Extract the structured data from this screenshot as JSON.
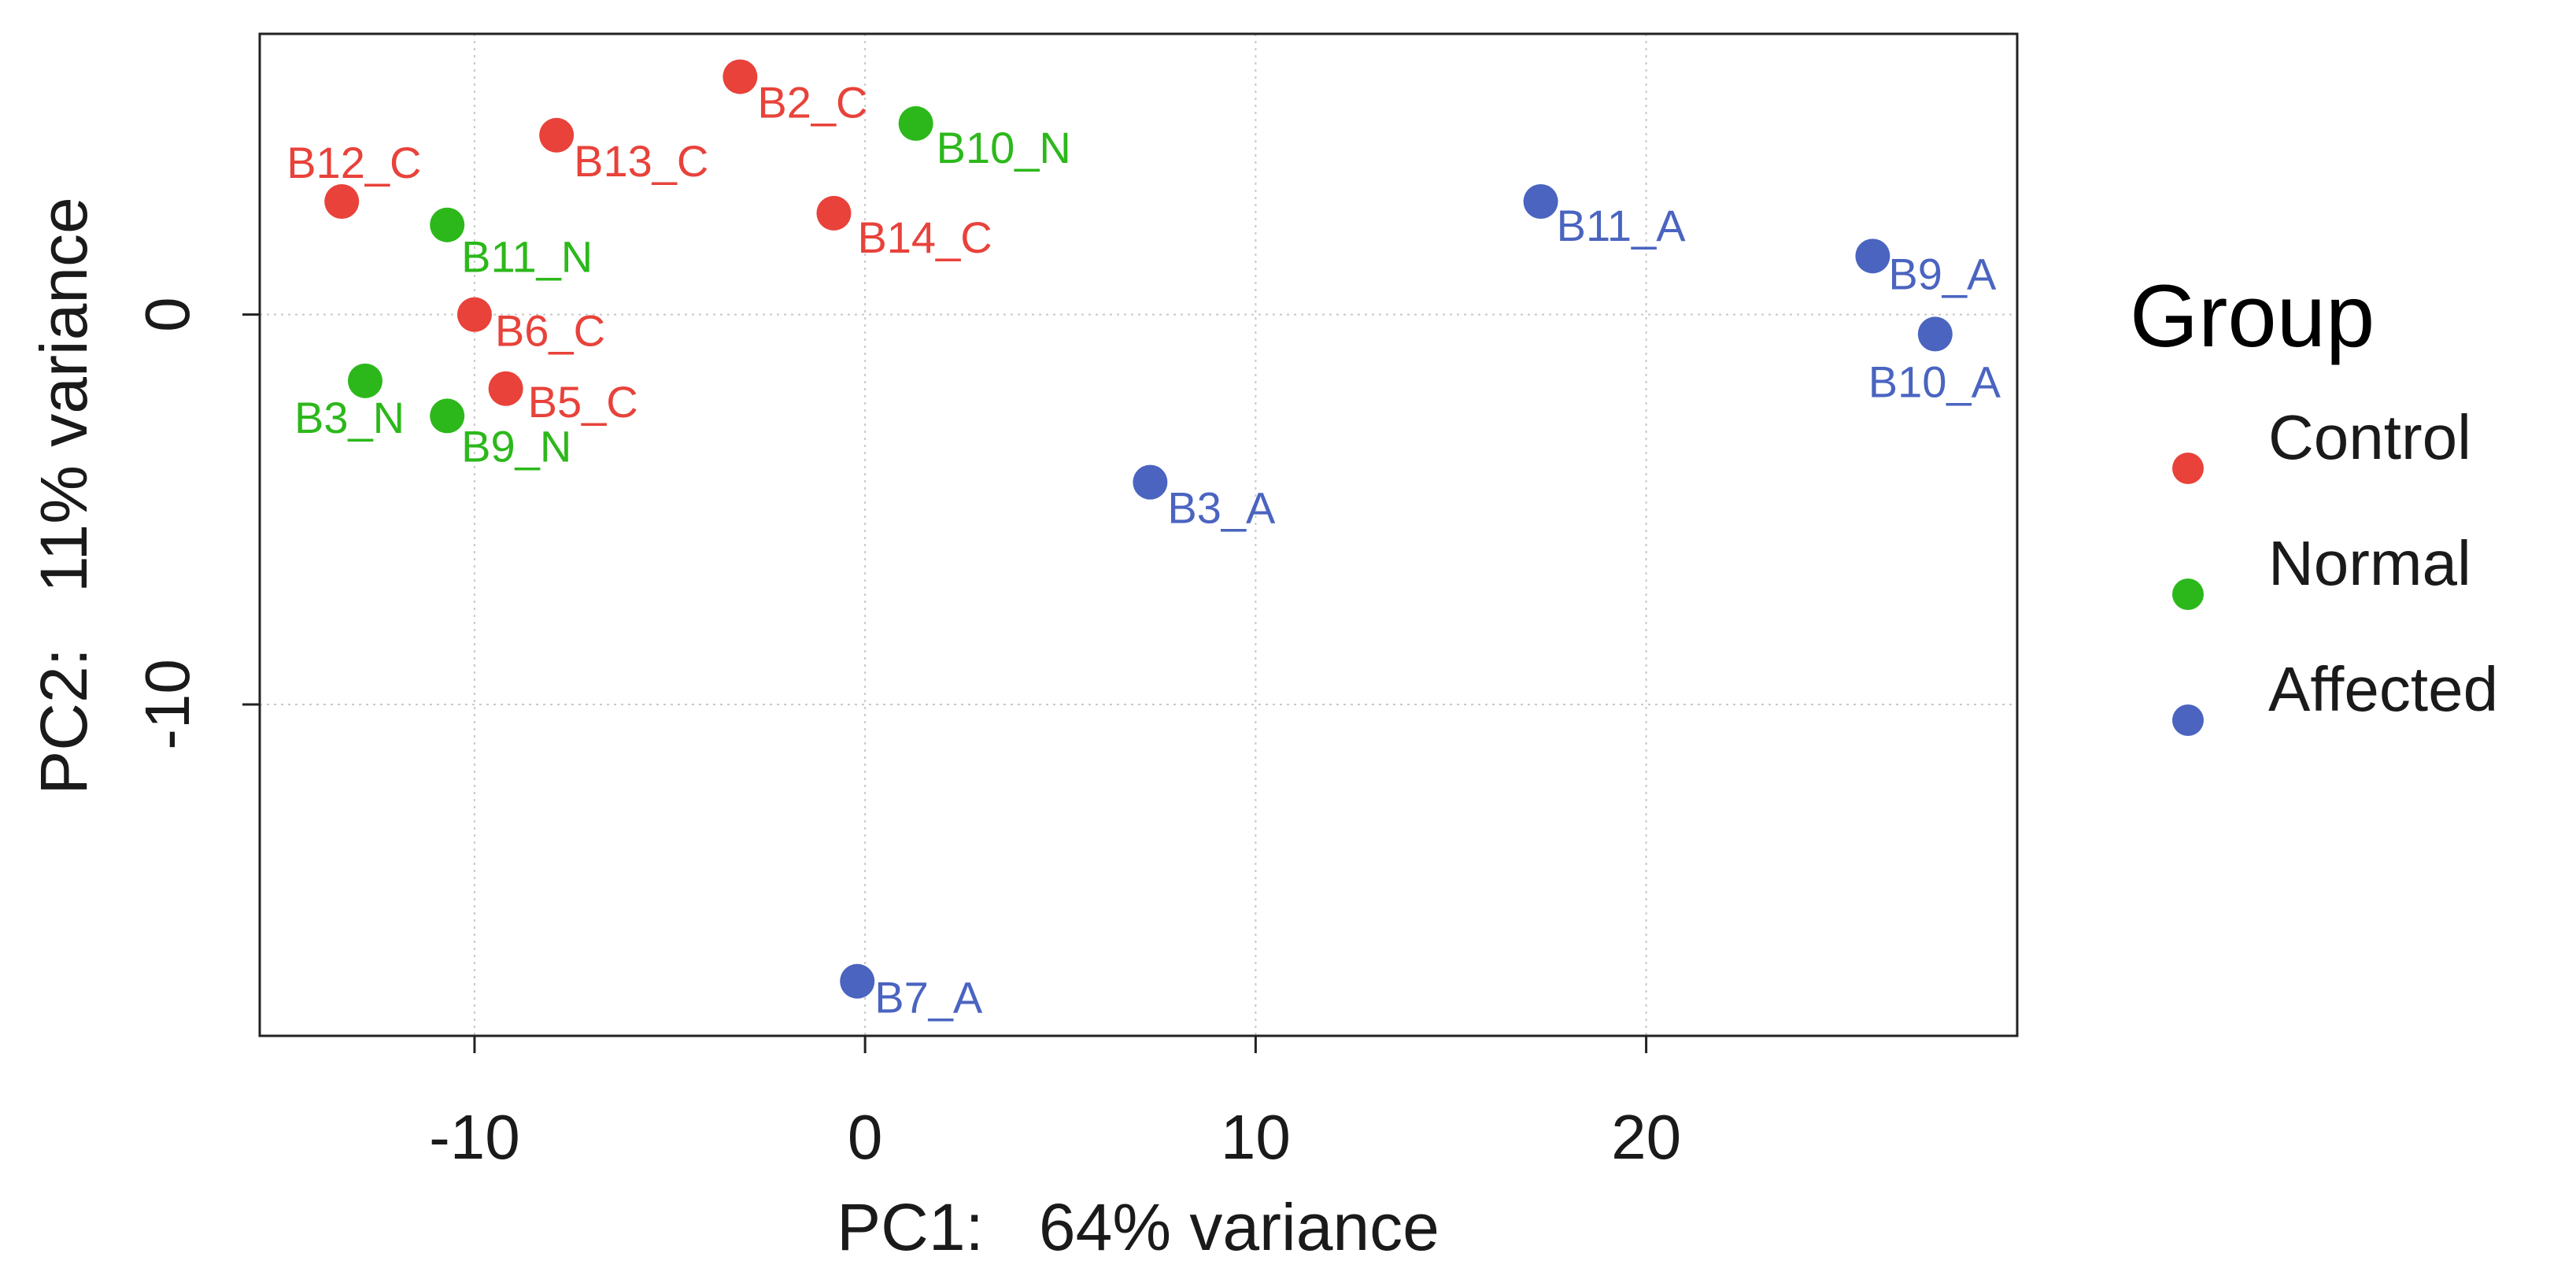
{
  "chart_data": {
    "type": "scatter",
    "xlabel": "PC1:   64% variance",
    "ylabel": "PC2:   11% variance",
    "xlim": [
      -15.5,
      29.5
    ],
    "ylim": [
      -18.5,
      7.2
    ],
    "x_ticks": [
      -10,
      0,
      10,
      20
    ],
    "y_ticks": [
      0,
      -10
    ],
    "grid": true,
    "legend": {
      "title": "Group",
      "position": "right",
      "entries": [
        {
          "label": "Control",
          "color": "#e8423a"
        },
        {
          "label": "Normal",
          "color": "#2cb81b"
        },
        {
          "label": "Affected",
          "color": "#4a64c0"
        }
      ]
    },
    "series": [
      {
        "name": "Control",
        "color": "#e8423a",
        "points": [
          {
            "label": "B2_C",
            "x": -3.2,
            "y": 6.1
          },
          {
            "label": "B13_C",
            "x": -7.9,
            "y": 4.6
          },
          {
            "label": "B12_C",
            "x": -13.4,
            "y": 2.9
          },
          {
            "label": "B14_C",
            "x": -0.8,
            "y": 2.6
          },
          {
            "label": "B6_C",
            "x": -10.0,
            "y": 0.0
          },
          {
            "label": "B5_C",
            "x": -9.2,
            "y": -1.9
          }
        ]
      },
      {
        "name": "Normal",
        "color": "#2cb81b",
        "points": [
          {
            "label": "B10_N",
            "x": 1.3,
            "y": 4.9
          },
          {
            "label": "B11_N",
            "x": -10.7,
            "y": 2.3
          },
          {
            "label": "B3_N",
            "x": -12.8,
            "y": -1.7
          },
          {
            "label": "B9_N",
            "x": -10.7,
            "y": -2.6
          }
        ]
      },
      {
        "name": "Affected",
        "color": "#4a64c0",
        "points": [
          {
            "label": "B11_A",
            "x": 17.3,
            "y": 2.9
          },
          {
            "label": "B9_A",
            "x": 25.8,
            "y": 1.5
          },
          {
            "label": "B10_A",
            "x": 27.4,
            "y": -0.5
          },
          {
            "label": "B3_A",
            "x": 7.3,
            "y": -4.3
          },
          {
            "label": "B7_A",
            "x": -0.2,
            "y": -17.1
          }
        ]
      }
    ]
  }
}
